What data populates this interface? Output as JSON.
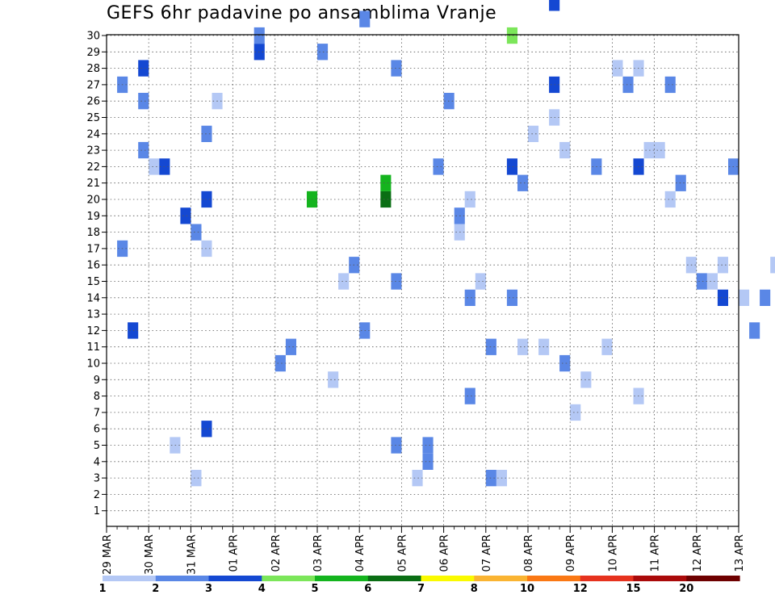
{
  "chart_data": {
    "type": "heatmap",
    "title": "GEFS 6hr padavine po ansamblima Vranje",
    "members": [
      1,
      2,
      3,
      4,
      5,
      6,
      7,
      8,
      9,
      10,
      11,
      12,
      13,
      14,
      15,
      16,
      17,
      18,
      19,
      20,
      21,
      22,
      23,
      24,
      25,
      26,
      27,
      28,
      29,
      30
    ],
    "x_labels": [
      "29 MAR",
      "30 MAR",
      "31 MAR",
      "01 APR",
      "02 APR",
      "03 APR",
      "04 APR",
      "05 APR",
      "06 APR",
      "07 APR",
      "08 APR",
      "09 APR",
      "10 APR",
      "11 APR",
      "12 APR",
      "13 APR"
    ],
    "steps_per_day": 4,
    "colorbar": {
      "labels": [
        "1",
        "2",
        "3",
        "4",
        "5",
        "6",
        "7",
        "8",
        "10",
        "12",
        "15",
        "20"
      ],
      "colors": [
        "#b4c8f5",
        "#5a87e6",
        "#1448d2",
        "#7ce65a",
        "#14b41e",
        "#0a6e14",
        "#fafa00",
        "#fab432",
        "#fa7814",
        "#e6321e",
        "#aa0a0a",
        "#6e0000"
      ]
    },
    "cells": [
      [
        1,
        17,
        2
      ],
      [
        1,
        27,
        2
      ],
      [
        2,
        12,
        3
      ],
      [
        3,
        23,
        2
      ],
      [
        3,
        26,
        2
      ],
      [
        3,
        28,
        3
      ],
      [
        4,
        22,
        1
      ],
      [
        5,
        22,
        3
      ],
      [
        6,
        5,
        1
      ],
      [
        6,
        41,
        2
      ],
      [
        7,
        19,
        3
      ],
      [
        8,
        3,
        1
      ],
      [
        8,
        18,
        2
      ],
      [
        9,
        6,
        3
      ],
      [
        9,
        17,
        1
      ],
      [
        9,
        20,
        3
      ],
      [
        9,
        24,
        2
      ],
      [
        10,
        26,
        1
      ],
      [
        11,
        36,
        3
      ],
      [
        13,
        33,
        4
      ],
      [
        13,
        38,
        3
      ],
      [
        14,
        29,
        3
      ],
      [
        14,
        30,
        2
      ],
      [
        14,
        39,
        1
      ],
      [
        15,
        44,
        1
      ],
      [
        16,
        10,
        2
      ],
      [
        17,
        11,
        2
      ],
      [
        18,
        33,
        1
      ],
      [
        18,
        34,
        3
      ],
      [
        18,
        35,
        6
      ],
      [
        18,
        36,
        4
      ],
      [
        19,
        20,
        5
      ],
      [
        19,
        36,
        2
      ],
      [
        20,
        29,
        2
      ],
      [
        20,
        44,
        2
      ],
      [
        21,
        9,
        1
      ],
      [
        22,
        15,
        1
      ],
      [
        23,
        16,
        2
      ],
      [
        24,
        12,
        2
      ],
      [
        24,
        31,
        2
      ],
      [
        25,
        42,
        2
      ],
      [
        26,
        20,
        6
      ],
      [
        26,
        21,
        5
      ],
      [
        27,
        5,
        2
      ],
      [
        27,
        15,
        2
      ],
      [
        27,
        28,
        2
      ],
      [
        27,
        36,
        3
      ],
      [
        28,
        36,
        2
      ],
      [
        29,
        3,
        1
      ],
      [
        29,
        37,
        3
      ],
      [
        29,
        38,
        1
      ],
      [
        30,
        4,
        2
      ],
      [
        30,
        5,
        2
      ],
      [
        31,
        22,
        2
      ],
      [
        32,
        26,
        2
      ],
      [
        33,
        18,
        1
      ],
      [
        33,
        19,
        2
      ],
      [
        33,
        38,
        1
      ],
      [
        34,
        8,
        2
      ],
      [
        34,
        14,
        2
      ],
      [
        34,
        20,
        1
      ],
      [
        35,
        15,
        1
      ],
      [
        36,
        3,
        2
      ],
      [
        36,
        11,
        2
      ],
      [
        37,
        3,
        1
      ],
      [
        38,
        14,
        2
      ],
      [
        38,
        22,
        3
      ],
      [
        38,
        30,
        4
      ],
      [
        39,
        11,
        1
      ],
      [
        39,
        21,
        2
      ],
      [
        40,
        24,
        1
      ],
      [
        41,
        11,
        1
      ],
      [
        42,
        25,
        1
      ],
      [
        42,
        27,
        3
      ],
      [
        42,
        32,
        3
      ],
      [
        43,
        10,
        2
      ],
      [
        43,
        23,
        1
      ],
      [
        44,
        7,
        1
      ],
      [
        45,
        9,
        1
      ],
      [
        46,
        22,
        2
      ],
      [
        47,
        11,
        1
      ],
      [
        48,
        28,
        1
      ],
      [
        49,
        27,
        2
      ],
      [
        50,
        8,
        1
      ],
      [
        50,
        22,
        3
      ],
      [
        50,
        28,
        1
      ],
      [
        51,
        23,
        1
      ],
      [
        52,
        23,
        1
      ],
      [
        53,
        20,
        1
      ],
      [
        53,
        27,
        2
      ],
      [
        54,
        21,
        2
      ],
      [
        55,
        16,
        1
      ],
      [
        56,
        15,
        2
      ],
      [
        57,
        15,
        1
      ],
      [
        58,
        14,
        3
      ],
      [
        58,
        16,
        1
      ],
      [
        59,
        22,
        2
      ],
      [
        60,
        14,
        1
      ],
      [
        61,
        12,
        2
      ],
      [
        62,
        14,
        2
      ],
      [
        63,
        16,
        1
      ],
      [
        64,
        15,
        1
      ],
      [
        65,
        25,
        2
      ],
      [
        66,
        22,
        2
      ],
      [
        67,
        25,
        2
      ],
      [
        68,
        24,
        2
      ],
      [
        69,
        20,
        3
      ],
      [
        70,
        18,
        1
      ],
      [
        71,
        16,
        2
      ],
      [
        72,
        18,
        2
      ],
      [
        73,
        23,
        1
      ],
      [
        74,
        3,
        3
      ],
      [
        75,
        2,
        3
      ],
      [
        76,
        2,
        3
      ],
      [
        77,
        4,
        3
      ],
      [
        78,
        23,
        1
      ],
      [
        79,
        20,
        3
      ],
      [
        80,
        24,
        3
      ],
      [
        82,
        9,
        5
      ],
      [
        83,
        8,
        3
      ],
      [
        84,
        6,
        2
      ],
      [
        85,
        12,
        1
      ],
      [
        86,
        5,
        2
      ],
      [
        87,
        4,
        2
      ],
      [
        88,
        21,
        3
      ],
      [
        89,
        24,
        2
      ]
    ],
    "grid": true
  }
}
